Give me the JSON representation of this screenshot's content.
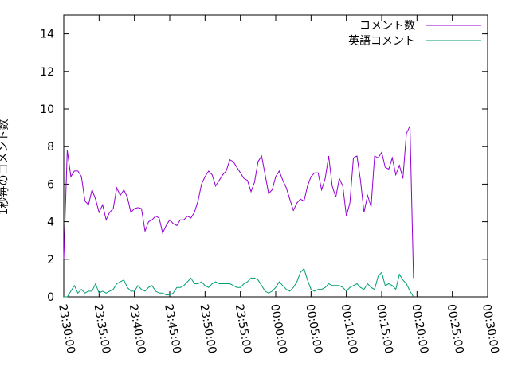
{
  "chart_data": {
    "type": "line",
    "title": "",
    "xlabel": "",
    "ylabel": "1秒毎のコメント数",
    "ylim": [
      0,
      15
    ],
    "yticks": [
      "0",
      "2",
      "4",
      "6",
      "8",
      "10",
      "12",
      "14"
    ],
    "xlim": [
      "23:30:00",
      "00:30:00"
    ],
    "xticks": [
      "23:30:00",
      "23:35:00",
      "23:40:00",
      "23:45:00",
      "23:50:00",
      "23:55:00",
      "00:00:00",
      "00:05:00",
      "00:10:00",
      "00:15:00",
      "00:20:00",
      "00:25:00",
      "00:30:00"
    ],
    "x_step_seconds": 30,
    "grid": false,
    "legend_position": "top-right",
    "series": [
      {
        "name": "コメント数",
        "color": "#9400d3",
        "values": [
          2.0,
          7.8,
          6.4,
          6.7,
          6.7,
          6.4,
          5.1,
          4.9,
          5.7,
          5.2,
          4.5,
          4.9,
          4.1,
          4.5,
          4.7,
          5.8,
          5.4,
          5.7,
          5.3,
          4.5,
          4.7,
          4.75,
          4.7,
          3.5,
          4.0,
          4.1,
          4.3,
          4.2,
          3.4,
          3.8,
          4.1,
          3.9,
          3.8,
          4.1,
          4.1,
          4.3,
          4.2,
          4.5,
          5.1,
          6.0,
          6.4,
          6.7,
          6.5,
          5.9,
          6.2,
          6.5,
          6.7,
          7.3,
          7.2,
          6.9,
          6.6,
          6.3,
          6.2,
          5.6,
          6.1,
          7.2,
          7.5,
          6.5,
          5.5,
          5.7,
          6.4,
          6.7,
          6.2,
          5.8,
          5.2,
          4.6,
          5.0,
          5.2,
          5.1,
          5.9,
          6.4,
          6.6,
          6.6,
          5.7,
          6.3,
          7.5,
          5.9,
          5.3,
          6.3,
          5.9,
          4.3,
          5.0,
          7.4,
          7.5,
          6.2,
          4.5,
          5.4,
          4.8,
          7.5,
          7.4,
          7.7,
          6.9,
          6.8,
          7.4,
          6.5,
          7.0,
          6.3,
          8.7,
          9.1,
          1.0
        ]
      },
      {
        "name": "英語コメント",
        "color": "#009e73",
        "values": [
          0.0,
          0.0,
          0.3,
          0.6,
          0.2,
          0.4,
          0.2,
          0.3,
          0.3,
          0.7,
          0.2,
          0.3,
          0.2,
          0.3,
          0.4,
          0.7,
          0.8,
          0.9,
          0.5,
          0.3,
          0.3,
          0.6,
          0.4,
          0.3,
          0.5,
          0.6,
          0.3,
          0.2,
          0.2,
          0.1,
          0.1,
          0.2,
          0.5,
          0.5,
          0.6,
          0.8,
          1.0,
          0.7,
          0.7,
          0.8,
          0.6,
          0.5,
          0.7,
          0.8,
          0.7,
          0.7,
          0.7,
          0.7,
          0.6,
          0.5,
          0.5,
          0.7,
          0.8,
          1.0,
          1.0,
          0.9,
          0.6,
          0.3,
          0.2,
          0.3,
          0.5,
          0.8,
          0.6,
          0.4,
          0.3,
          0.5,
          0.8,
          1.3,
          1.5,
          0.9,
          0.4,
          0.3,
          0.4,
          0.4,
          0.5,
          0.7,
          0.6,
          0.6,
          0.6,
          0.5,
          0.3,
          0.5,
          0.6,
          0.7,
          0.5,
          0.4,
          0.7,
          0.5,
          0.4,
          1.1,
          1.3,
          0.6,
          0.7,
          0.6,
          0.4,
          1.2,
          0.9,
          0.7,
          0.3,
          0.0
        ]
      }
    ]
  }
}
